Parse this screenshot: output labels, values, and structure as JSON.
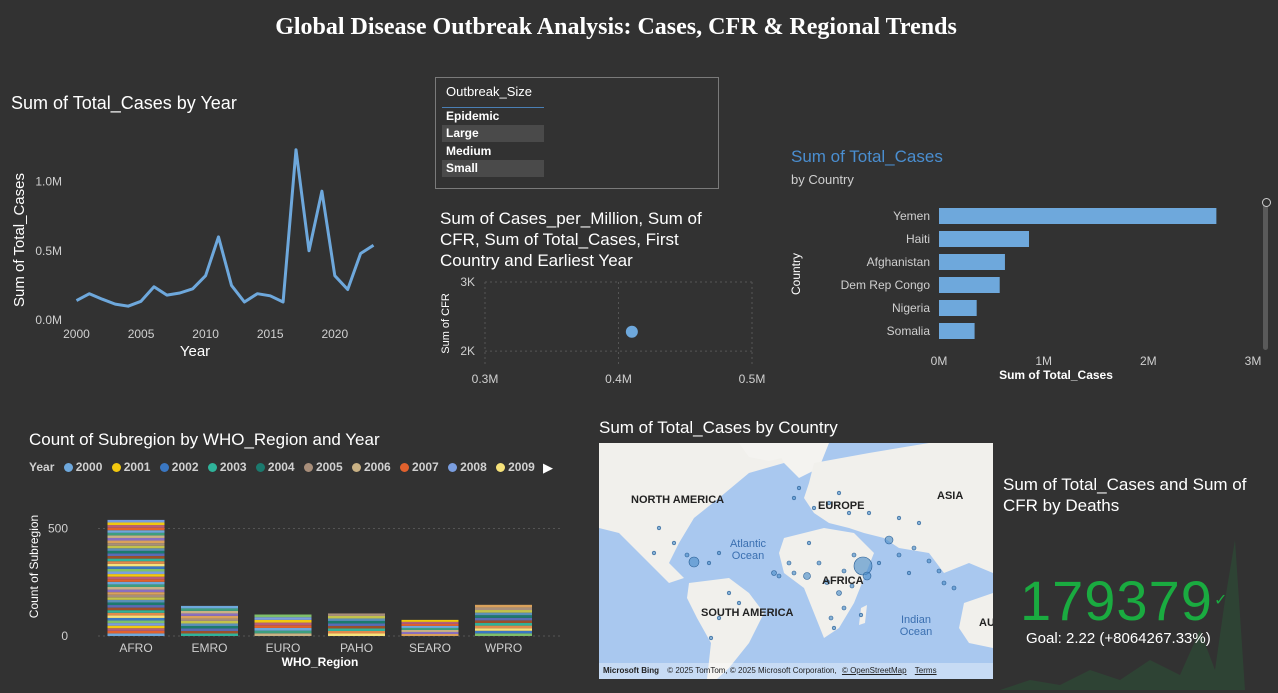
{
  "page_title": "Global Disease Outbreak Analysis: Cases, CFR & Regional Trends",
  "line_chart_title": "Sum of Total_Cases by Year",
  "slicer": {
    "header": "Outbreak_Size",
    "items": [
      "Epidemic",
      "Large",
      "Medium",
      "Small"
    ]
  },
  "scatter_title": "Sum of Cases_per_Million, Sum of CFR, Sum of Total_Cases, First Country and Earliest Year",
  "bar_chart_title": "Sum of Total_Cases",
  "bar_chart_subtitle": "by Country",
  "stacked_title": "Count of Subregion by WHO_Region and Year",
  "legend": {
    "label": "Year",
    "items": [
      {
        "year": "2000",
        "color": "#6ea8dc"
      },
      {
        "year": "2001",
        "color": "#f2c80f"
      },
      {
        "year": "2002",
        "color": "#3a77c2"
      },
      {
        "year": "2003",
        "color": "#2fb39a"
      },
      {
        "year": "2004",
        "color": "#1b7a6e"
      },
      {
        "year": "2005",
        "color": "#a88e7a"
      },
      {
        "year": "2006",
        "color": "#c9b184"
      },
      {
        "year": "2007",
        "color": "#e1612d"
      },
      {
        "year": "2008",
        "color": "#7a9ee0"
      },
      {
        "year": "2009",
        "color": "#f6e27a"
      }
    ]
  },
  "map": {
    "title": "Sum of Total_Cases by Country",
    "labels": {
      "north_america": "NORTH AMERICA",
      "europe": "EUROPE",
      "asia": "ASIA",
      "africa": "AFRICA",
      "south_america": "SOUTH AMERICA",
      "australia": "AU",
      "atlantic": "Atlantic Ocean",
      "indian": "Indian Ocean"
    },
    "footer": {
      "brand": "Microsoft Bing",
      "copyright": "© 2025 TomTom, © 2025 Microsoft Corporation,",
      "osm": "© OpenStreetMap",
      "terms": "Terms"
    }
  },
  "kpi": {
    "title": "Sum of Total_Cases and Sum of CFR by Deaths",
    "value": "179379",
    "goal": "Goal: 2.22 (+8064267.33%)",
    "color": "#1aab40"
  },
  "chart_data": [
    {
      "type": "line",
      "title": "Sum of Total_Cases by Year",
      "xlabel": "Year",
      "ylabel": "Sum of Total_Cases",
      "x": [
        2000,
        2001,
        2002,
        2003,
        2004,
        2005,
        2006,
        2007,
        2008,
        2009,
        2010,
        2011,
        2012,
        2013,
        2014,
        2015,
        2016,
        2017,
        2018,
        2019,
        2020,
        2021,
        2022,
        2023
      ],
      "y": [
        140000,
        190000,
        150000,
        115000,
        100000,
        135000,
        240000,
        180000,
        195000,
        225000,
        320000,
        600000,
        250000,
        130000,
        190000,
        175000,
        130000,
        1230000,
        500000,
        930000,
        320000,
        220000,
        480000,
        540000
      ],
      "xlim": [
        1999.5,
        2023.5
      ],
      "ylim": [
        0,
        1300000
      ],
      "xticks": [
        "2000",
        "2005",
        "2010",
        "2015",
        "2020"
      ],
      "yticks": [
        "0.0M",
        "0.5M",
        "1.0M"
      ],
      "color": "#6ea8dc"
    },
    {
      "type": "scatter",
      "xlabel": "",
      "ylabel": "Sum of CFR",
      "xlim": [
        0.3,
        0.5
      ],
      "ylim": [
        1800,
        3000
      ],
      "xticks": [
        "0.3M",
        "0.4M",
        "0.5M"
      ],
      "yticks": [
        "2K",
        "3K"
      ],
      "points": [
        {
          "x": 0.41,
          "y": 2280
        }
      ],
      "color": "#6ea8dc"
    },
    {
      "type": "bar",
      "orientation": "horizontal",
      "title": "Sum of Total_Cases",
      "subtitle": "by Country",
      "xlabel": "Sum of Total_Cases",
      "ylabel": "Country",
      "categories": [
        "Yemen",
        "Haiti",
        "Afghanistan",
        "Dem Rep Congo",
        "Nigeria",
        "Somalia"
      ],
      "values": [
        2650000,
        860000,
        630000,
        580000,
        360000,
        340000
      ],
      "xlim": [
        0,
        3000000
      ],
      "xticks": [
        "0M",
        "1M",
        "2M",
        "3M"
      ],
      "color": "#6ea8dc"
    },
    {
      "type": "bar",
      "stacked": true,
      "title": "Count of Subregion by WHO_Region and Year",
      "xlabel": "WHO_Region",
      "ylabel": "Count of Subregion",
      "categories": [
        "AFRO",
        "EMRO",
        "EURO",
        "PAHO",
        "SEARO",
        "WPRO"
      ],
      "values": [
        540,
        140,
        100,
        105,
        75,
        145
      ],
      "ylim": [
        0,
        600
      ],
      "yticks": [
        "0",
        "500"
      ]
    }
  ]
}
